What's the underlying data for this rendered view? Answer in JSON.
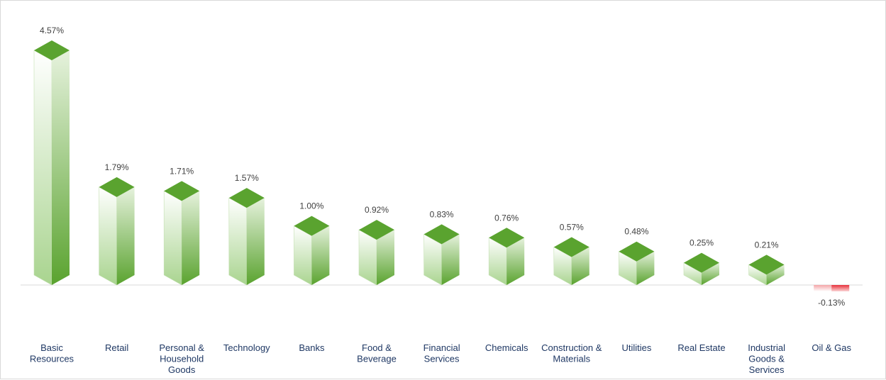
{
  "chart_data": {
    "type": "bar",
    "title": "",
    "xlabel": "",
    "ylabel": "",
    "categories": [
      "Basic Resources",
      "Retail",
      "Personal & Household Goods",
      "Technology",
      "Banks",
      "Food & Beverage",
      "Financial Services",
      "Chemicals",
      "Construction & Materials",
      "Utilities",
      "Real Estate",
      "Industrial Goods & Services",
      "Oil & Gas"
    ],
    "category_lines": [
      [
        "Basic",
        "Resources"
      ],
      [
        "Retail"
      ],
      [
        "Personal &",
        "Household",
        "Goods"
      ],
      [
        "Technology"
      ],
      [
        "Banks"
      ],
      [
        "Food &",
        "Beverage"
      ],
      [
        "Financial",
        "Services"
      ],
      [
        "Chemicals"
      ],
      [
        "Construction &",
        "Materials"
      ],
      [
        "Utilities"
      ],
      [
        "Real Estate"
      ],
      [
        "Industrial",
        "Goods &",
        "Services"
      ],
      [
        "Oil & Gas"
      ]
    ],
    "values": [
      4.57,
      1.79,
      1.71,
      1.57,
      1.0,
      0.92,
      0.83,
      0.76,
      0.57,
      0.48,
      0.25,
      0.21,
      -0.13
    ],
    "value_labels": [
      "4.57%",
      "1.79%",
      "1.71%",
      "1.57%",
      "1.00%",
      "0.92%",
      "0.83%",
      "0.76%",
      "0.57%",
      "0.48%",
      "0.25%",
      "0.21%",
      "-0.13%"
    ],
    "ylim": [
      -0.13,
      4.57
    ],
    "grid": false,
    "legend": "none",
    "style": "3d-pyramid-top-columns",
    "colors": {
      "positive_dark": "#5aa32f",
      "positive_light": "#ffffff",
      "negative_dark": "#e8323c",
      "negative_light": "#ffffff",
      "axis": "#d9d9d9",
      "value_text": "#404040",
      "category_text": "#1f3864"
    }
  }
}
